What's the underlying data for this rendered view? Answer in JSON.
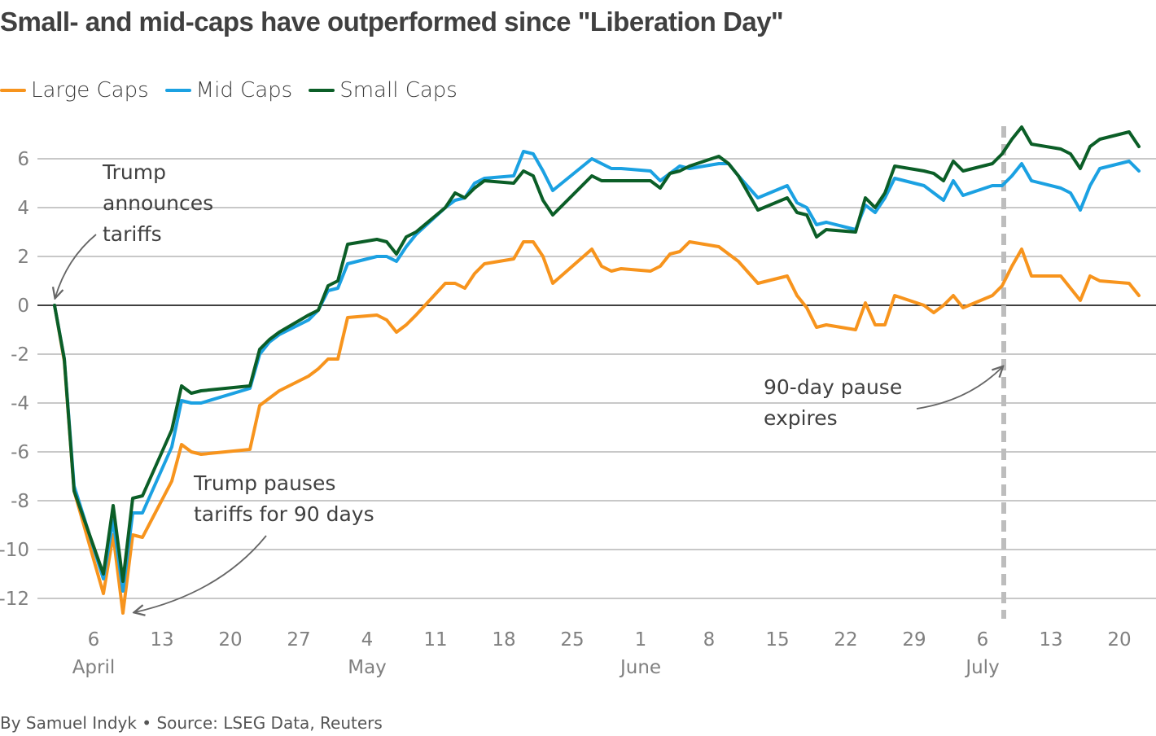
{
  "title": "Small- and mid-caps have outperformed since \"Liberation Day\"",
  "footer": "By Samuel Indyk • Source: LSEG Data, Reuters",
  "legend": [
    {
      "label": "Large Caps",
      "color": "#f7941d"
    },
    {
      "label": "Mid Caps",
      "color": "#1ba1e2"
    },
    {
      "label": "Small Caps",
      "color": "#0b5e27"
    }
  ],
  "chart_data": {
    "type": "line",
    "title": "Small- and mid-caps have outperformed since \"Liberation Day\"",
    "xlabel": "",
    "ylabel": "",
    "x_unit": "days since April 2",
    "xlim": [
      0,
      111
    ],
    "ylim": [
      -13,
      7.5
    ],
    "yticks": [
      6,
      4,
      2,
      0,
      -2,
      -4,
      -6,
      -8,
      -10,
      -12
    ],
    "xticks": [
      {
        "day": 4,
        "label": "6",
        "month": "April"
      },
      {
        "day": 11,
        "label": "13",
        "month": ""
      },
      {
        "day": 18,
        "label": "20",
        "month": ""
      },
      {
        "day": 25,
        "label": "27",
        "month": ""
      },
      {
        "day": 32,
        "label": "4",
        "month": "May"
      },
      {
        "day": 39,
        "label": "11",
        "month": ""
      },
      {
        "day": 46,
        "label": "18",
        "month": ""
      },
      {
        "day": 53,
        "label": "25",
        "month": ""
      },
      {
        "day": 60,
        "label": "1",
        "month": "June"
      },
      {
        "day": 67,
        "label": "8",
        "month": ""
      },
      {
        "day": 74,
        "label": "15",
        "month": ""
      },
      {
        "day": 81,
        "label": "22",
        "month": ""
      },
      {
        "day": 88,
        "label": "29",
        "month": ""
      },
      {
        "day": 95,
        "label": "6",
        "month": "July"
      },
      {
        "day": 102,
        "label": "13",
        "month": ""
      },
      {
        "day": 109,
        "label": "20",
        "month": ""
      }
    ],
    "grid": true,
    "legend_position": "top-left",
    "x": [
      0,
      1,
      2,
      5,
      6,
      7,
      8,
      9,
      12,
      13,
      14,
      15,
      20,
      21,
      22,
      23,
      26,
      27,
      28,
      29,
      30,
      33,
      34,
      35,
      36,
      37,
      40,
      41,
      42,
      43,
      44,
      47,
      48,
      49,
      50,
      51,
      55,
      56,
      57,
      58,
      61,
      62,
      63,
      64,
      65,
      68,
      69,
      70,
      72,
      75,
      76,
      77,
      78,
      79,
      82,
      83,
      84,
      85,
      86,
      89,
      90,
      91,
      92,
      93,
      96,
      97,
      98,
      99,
      100,
      103,
      104,
      105,
      106,
      107,
      110,
      111
    ],
    "series": [
      {
        "name": "Large Caps",
        "color": "#f7941d",
        "values": [
          0,
          -2.3,
          -7.6,
          -11.8,
          -9.4,
          -12.6,
          -9.4,
          -9.5,
          -7.2,
          -5.7,
          -6.0,
          -6.1,
          -5.9,
          -4.1,
          -3.8,
          -3.5,
          -2.9,
          -2.6,
          -2.2,
          -2.2,
          -0.5,
          -0.4,
          -0.6,
          -1.1,
          -0.8,
          -0.4,
          0.9,
          0.9,
          0.7,
          1.3,
          1.7,
          1.9,
          2.6,
          2.6,
          2.0,
          0.9,
          2.3,
          1.6,
          1.4,
          1.5,
          1.4,
          1.6,
          2.1,
          2.2,
          2.6,
          2.4,
          2.1,
          1.8,
          0.9,
          1.2,
          0.4,
          -0.1,
          -0.9,
          -0.8,
          -1.0,
          0.1,
          -0.8,
          -0.8,
          0.4,
          0.0,
          -0.3,
          0.0,
          0.4,
          -0.1,
          0.4,
          0.8,
          1.6,
          2.3,
          1.2,
          1.2,
          0.7,
          0.2,
          1.2,
          1.0,
          0.9,
          0.4
        ]
      },
      {
        "name": "Mid Caps",
        "color": "#1ba1e2",
        "values": [
          0,
          -2.2,
          -7.4,
          -11.2,
          -8.8,
          -11.7,
          -8.5,
          -8.5,
          -5.8,
          -3.9,
          -4.0,
          -4.0,
          -3.4,
          -2.0,
          -1.5,
          -1.2,
          -0.6,
          -0.2,
          0.6,
          0.7,
          1.7,
          2.0,
          2.0,
          1.8,
          2.4,
          2.9,
          4.0,
          4.3,
          4.4,
          5.0,
          5.2,
          5.3,
          6.3,
          6.2,
          5.5,
          4.7,
          6.0,
          5.8,
          5.6,
          5.6,
          5.5,
          5.1,
          5.4,
          5.7,
          5.6,
          5.8,
          5.8,
          5.3,
          4.4,
          4.9,
          4.2,
          4.0,
          3.3,
          3.4,
          3.1,
          4.1,
          3.8,
          4.4,
          5.2,
          4.9,
          4.6,
          4.3,
          5.1,
          4.5,
          4.9,
          4.9,
          5.3,
          5.8,
          5.1,
          4.8,
          4.6,
          3.9,
          4.9,
          5.6,
          5.9,
          5.5
        ]
      },
      {
        "name": "Small Caps",
        "color": "#0b5e27",
        "values": [
          0,
          -2.2,
          -7.6,
          -11.0,
          -8.2,
          -11.3,
          -7.9,
          -7.8,
          -5.1,
          -3.3,
          -3.6,
          -3.5,
          -3.3,
          -1.8,
          -1.4,
          -1.1,
          -0.4,
          -0.2,
          0.8,
          1.0,
          2.5,
          2.7,
          2.6,
          2.1,
          2.8,
          3.0,
          4.0,
          4.6,
          4.4,
          4.8,
          5.1,
          5.0,
          5.5,
          5.3,
          4.3,
          3.7,
          5.3,
          5.1,
          5.1,
          5.1,
          5.1,
          4.8,
          5.4,
          5.5,
          5.7,
          6.1,
          5.8,
          5.3,
          3.9,
          4.4,
          3.8,
          3.7,
          2.8,
          3.1,
          3.0,
          4.4,
          4.0,
          4.6,
          5.7,
          5.5,
          5.4,
          5.1,
          5.9,
          5.5,
          5.8,
          6.2,
          6.8,
          7.3,
          6.6,
          6.4,
          6.2,
          5.6,
          6.5,
          6.8,
          7.1,
          6.5
        ]
      }
    ],
    "vline": {
      "day": 98,
      "label": "90-day pause expires",
      "style": "dashed"
    },
    "annotations": [
      {
        "text_lines": [
          "Trump",
          "announces",
          "tariffs"
        ],
        "target_day": 0,
        "target_value": 0
      },
      {
        "text_lines": [
          "Trump pauses",
          "tariffs for 90 days"
        ],
        "target_day": 7,
        "target_value": -12.6
      },
      {
        "text_lines": [
          "90-day pause",
          "expires"
        ],
        "target_day": 97,
        "target_value": -2.5
      }
    ]
  }
}
